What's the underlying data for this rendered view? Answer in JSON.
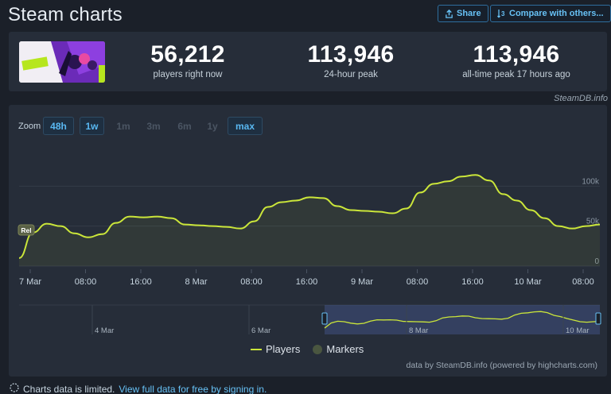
{
  "header": {
    "title": "Steam charts",
    "share_label": "Share",
    "compare_label": "Compare with others..."
  },
  "stats": {
    "current": {
      "value": "56,212",
      "label": "players right now"
    },
    "peak24": {
      "value": "113,946",
      "label": "24-hour peak"
    },
    "alltime": {
      "value": "113,946",
      "label": "all-time peak 17 hours ago"
    }
  },
  "credit": "SteamDB.info",
  "zoom": {
    "label": "Zoom",
    "buttons": [
      {
        "label": "48h",
        "active": true
      },
      {
        "label": "1w",
        "active": true
      },
      {
        "label": "1m",
        "active": false
      },
      {
        "label": "3m",
        "active": false
      },
      {
        "label": "6m",
        "active": false
      },
      {
        "label": "1y",
        "active": false
      },
      {
        "label": "max",
        "active": true
      }
    ]
  },
  "chart_data": {
    "type": "area",
    "series": [
      {
        "name": "Players",
        "color": "#cbe63a",
        "x": [
          "7 Mar 00:00",
          "7 Mar 01:00",
          "7 Mar 02:00",
          "7 Mar 04:00",
          "7 Mar 06:00",
          "7 Mar 08:00",
          "7 Mar 10:00",
          "7 Mar 12:00",
          "7 Mar 14:00",
          "7 Mar 16:00",
          "7 Mar 18:00",
          "7 Mar 20:00",
          "7 Mar 22:00",
          "8 Mar 00:00",
          "8 Mar 02:00",
          "8 Mar 04:00",
          "8 Mar 06:00",
          "8 Mar 08:00",
          "8 Mar 10:00",
          "8 Mar 12:00",
          "8 Mar 14:00",
          "8 Mar 16:00",
          "8 Mar 18:00",
          "8 Mar 20:00",
          "8 Mar 22:00",
          "9 Mar 00:00",
          "9 Mar 02:00",
          "9 Mar 04:00",
          "9 Mar 06:00",
          "9 Mar 08:00",
          "9 Mar 10:00",
          "9 Mar 12:00",
          "9 Mar 14:00",
          "9 Mar 16:00",
          "9 Mar 18:00",
          "9 Mar 20:00",
          "9 Mar 22:00",
          "10 Mar 00:00",
          "10 Mar 02:00",
          "10 Mar 04:00",
          "10 Mar 06:00",
          "10 Mar 08:00",
          "10 Mar 10:00"
        ],
        "values": [
          10000,
          42000,
          53000,
          50000,
          41000,
          36000,
          40000,
          54000,
          62000,
          61000,
          62000,
          60000,
          52000,
          51000,
          50000,
          49000,
          47000,
          56000,
          74000,
          80000,
          82000,
          86000,
          85000,
          75000,
          70000,
          69000,
          68000,
          66000,
          72000,
          92000,
          103000,
          106000,
          112000,
          113946,
          107000,
          90000,
          82000,
          70000,
          60000,
          50000,
          47000,
          50000,
          52000
        ]
      }
    ],
    "x_ticks": [
      "7 Mar",
      "08:00",
      "16:00",
      "8 Mar",
      "08:00",
      "16:00",
      "9 Mar",
      "08:00",
      "16:00",
      "10 Mar",
      "08:00"
    ],
    "y_ticks": [
      "0",
      "50k",
      "100k"
    ],
    "ylim": [
      0,
      150000
    ],
    "annotations": [
      {
        "text": "Rel",
        "x": "7 Mar 00:00"
      }
    ],
    "navigator": {
      "labels": [
        "4 Mar",
        "6 Mar",
        "8 Mar",
        "10 Mar"
      ]
    }
  },
  "legend": {
    "players": "Players",
    "markers": "Markers"
  },
  "source": "data by SteamDB.info (powered by highcharts.com)",
  "notice": {
    "text": "Charts data is limited.",
    "link": "View full data for free by signing in."
  },
  "colors": {
    "accent": "#67c1f5",
    "series": "#cbe63a",
    "background": "#1b2029",
    "panel": "#262d39"
  }
}
